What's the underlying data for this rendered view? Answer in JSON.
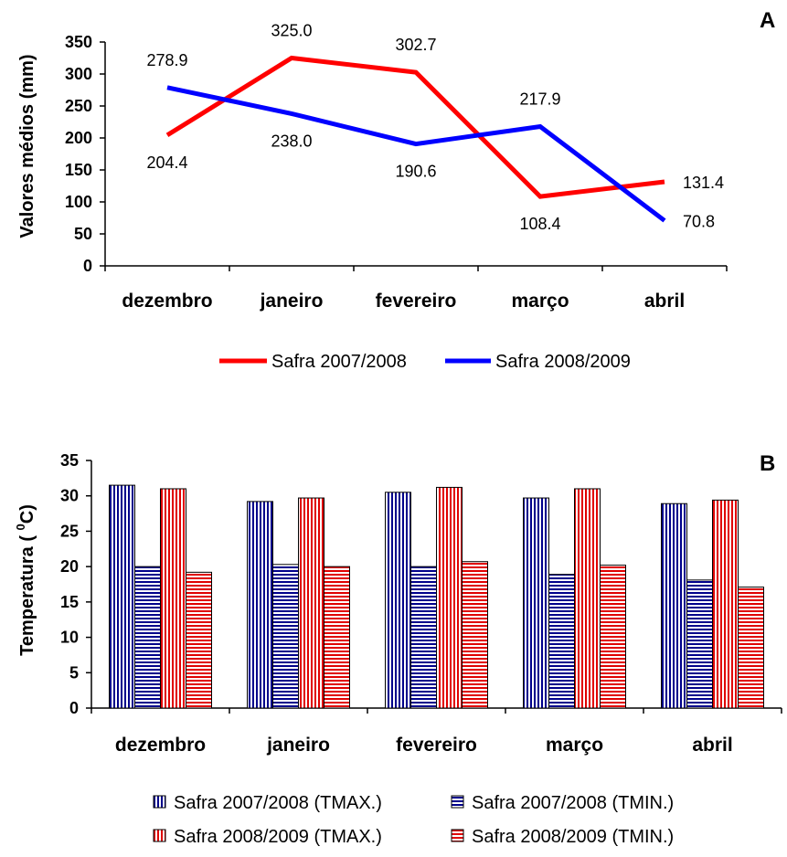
{
  "chart_data": [
    {
      "type": "line",
      "panel_label": "A",
      "ylabel": "Valores médios (mm)",
      "ylim": [
        0,
        350
      ],
      "yticks": [
        "0",
        "50",
        "100",
        "150",
        "200",
        "250",
        "300",
        "350"
      ],
      "categories": [
        "dezembro",
        "janeiro",
        "fevereiro",
        "março",
        "abril"
      ],
      "legend_position": "bottom",
      "series": [
        {
          "name": "Safra 2007/2008",
          "color": "#ff0000",
          "values": [
            204.4,
            325.0,
            302.7,
            108.4,
            131.4
          ],
          "labels": [
            "204.4",
            "325.0",
            "302.7",
            "108.4",
            "131.4"
          ]
        },
        {
          "name": "Safra 2008/2009",
          "color": "#0000ff",
          "values": [
            278.9,
            238.0,
            190.6,
            217.9,
            70.8
          ],
          "labels": [
            "278.9",
            "238.0",
            "190.6",
            "217.9",
            "70.8"
          ]
        }
      ]
    },
    {
      "type": "bar",
      "panel_label": "B",
      "ylabel_main": "Temperatura ( ",
      "ylabel_sup": "0",
      "ylabel_end": "C)",
      "ylim": [
        0,
        35
      ],
      "yticks": [
        "0",
        "5",
        "10",
        "15",
        "20",
        "25",
        "30",
        "35"
      ],
      "categories": [
        "dezembro",
        "janeiro",
        "fevereiro",
        "março",
        "abril"
      ],
      "legend_position": "bottom",
      "series": [
        {
          "name": "Safra 2007/2008 (TMAX.)",
          "color": "#00008b",
          "pattern": "vertical",
          "values": [
            31.5,
            29.2,
            30.5,
            29.7,
            28.9
          ]
        },
        {
          "name": "Safra 2007/2008 (TMIN.)",
          "color": "#00008b",
          "pattern": "horizontal",
          "values": [
            20.0,
            20.3,
            20.0,
            18.9,
            18.1
          ]
        },
        {
          "name": "Safra 2008/2009 (TMAX.)",
          "color": "#e00000",
          "pattern": "vertical",
          "values": [
            31.0,
            29.7,
            31.2,
            31.0,
            29.4
          ]
        },
        {
          "name": "Safra 2008/2009 (TMIN.)",
          "color": "#e00000",
          "pattern": "horizontal",
          "values": [
            19.2,
            20.0,
            20.7,
            20.2,
            17.1
          ]
        }
      ]
    }
  ]
}
